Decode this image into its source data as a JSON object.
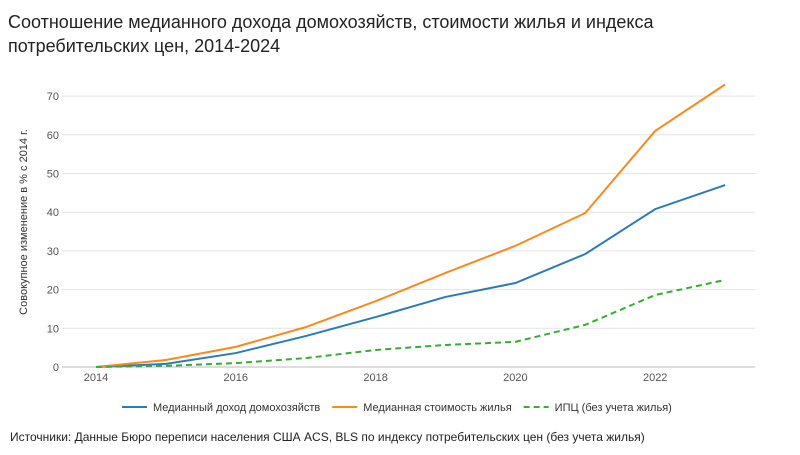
{
  "chart_data": {
    "type": "line",
    "title": "Соотношение медианного дохода домохозяйств, стоимости жилья и индекса потребительских цен, 2014-2024",
    "xlabel": "",
    "ylabel": "Совокупное изменение в % с 2014 г.",
    "x": [
      2014,
      2015,
      2016,
      2017,
      2018,
      2019,
      2020,
      2021,
      2022,
      2023
    ],
    "xticks": [
      "2014",
      "2016",
      "2018",
      "2020",
      "2022"
    ],
    "yticks": [
      "0",
      "10",
      "20",
      "30",
      "40",
      "50",
      "60",
      "70"
    ],
    "ylim": [
      0,
      70
    ],
    "xlim": [
      2013.5,
      2023.8
    ],
    "grid": true,
    "legend": "bottom",
    "series": [
      {
        "name": "Медианный доход домохозяйств",
        "color": "#2b7bba",
        "dash": false,
        "values": [
          0,
          0.8,
          3.6,
          8.0,
          12.9,
          18.1,
          21.7,
          29.2,
          40.8,
          47.0
        ]
      },
      {
        "name": "Медианная стоимость жилья",
        "color": "#f7891f",
        "dash": false,
        "values": [
          0,
          1.8,
          5.2,
          10.3,
          17.0,
          24.3,
          31.3,
          39.8,
          61.0,
          73.0
        ]
      },
      {
        "name": "ИПЦ (без учета жилья)",
        "color": "#3aaa35",
        "dash": true,
        "values": [
          0,
          0.3,
          1.0,
          2.3,
          4.4,
          5.7,
          6.5,
          10.9,
          18.6,
          22.5
        ]
      }
    ]
  },
  "source": "Источники: Данные Бюро переписи населения США ACS, BLS по индексу потребительских цен (без учета жилья)"
}
